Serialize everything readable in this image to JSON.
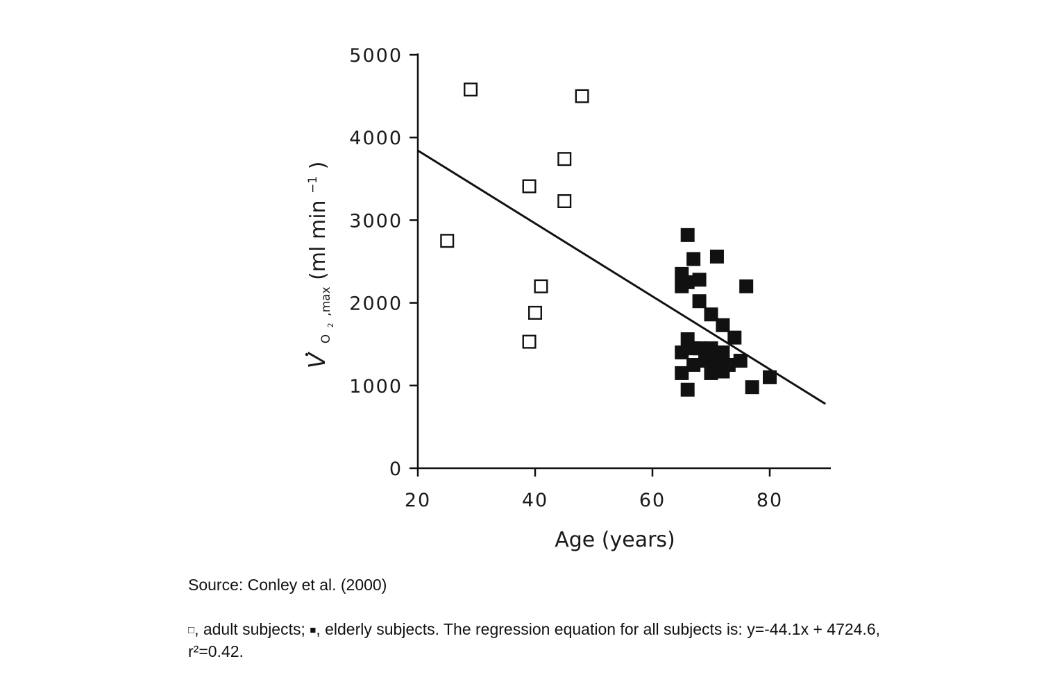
{
  "chart_data": {
    "type": "scatter",
    "title": "",
    "xlabel": "Age (years)",
    "ylabel": {
      "symbol": "V",
      "subscript_o": "O",
      "subscript_2": "2",
      "subscript_max": ",max",
      "units_open": " (ml min",
      "units_exp": "−1",
      "units_close": ")"
    },
    "xlim": [
      20,
      90
    ],
    "ylim": [
      0,
      5000
    ],
    "x_ticks": [
      20,
      40,
      60,
      80
    ],
    "y_ticks": [
      0,
      1000,
      2000,
      3000,
      4000,
      5000
    ],
    "grid": false,
    "series": [
      {
        "name": "adult subjects",
        "marker": "open-square",
        "points": [
          {
            "x": 25,
            "y": 2750
          },
          {
            "x": 29,
            "y": 4580
          },
          {
            "x": 39,
            "y": 3410
          },
          {
            "x": 39,
            "y": 1530
          },
          {
            "x": 40,
            "y": 1880
          },
          {
            "x": 41,
            "y": 2200
          },
          {
            "x": 45,
            "y": 3740
          },
          {
            "x": 45,
            "y": 3230
          },
          {
            "x": 48,
            "y": 4500
          }
        ]
      },
      {
        "name": "elderly subjects",
        "marker": "filled-square",
        "points": [
          {
            "x": 65,
            "y": 2350
          },
          {
            "x": 65,
            "y": 2200
          },
          {
            "x": 65,
            "y": 1400
          },
          {
            "x": 65,
            "y": 1150
          },
          {
            "x": 66,
            "y": 2820
          },
          {
            "x": 66,
            "y": 2250
          },
          {
            "x": 66,
            "y": 1560
          },
          {
            "x": 66,
            "y": 950
          },
          {
            "x": 67,
            "y": 2530
          },
          {
            "x": 67,
            "y": 1450
          },
          {
            "x": 67,
            "y": 1250
          },
          {
            "x": 68,
            "y": 2280
          },
          {
            "x": 68,
            "y": 2020
          },
          {
            "x": 68,
            "y": 1450
          },
          {
            "x": 69,
            "y": 1300
          },
          {
            "x": 70,
            "y": 1860
          },
          {
            "x": 70,
            "y": 1450
          },
          {
            "x": 70,
            "y": 1150
          },
          {
            "x": 71,
            "y": 2560
          },
          {
            "x": 71,
            "y": 1350
          },
          {
            "x": 71,
            "y": 1250
          },
          {
            "x": 72,
            "y": 1730
          },
          {
            "x": 72,
            "y": 1400
          },
          {
            "x": 72,
            "y": 1170
          },
          {
            "x": 73,
            "y": 1250
          },
          {
            "x": 74,
            "y": 1580
          },
          {
            "x": 75,
            "y": 1300
          },
          {
            "x": 76,
            "y": 2200
          },
          {
            "x": 77,
            "y": 980
          },
          {
            "x": 80,
            "y": 1100
          }
        ]
      }
    ],
    "regression": {
      "slope": -44.1,
      "intercept": 4724.6,
      "x_range": [
        20,
        89.5
      ]
    }
  },
  "caption": {
    "source": "Source: Conley et al. (2000)",
    "adult_symbol": "□",
    "adult_text": ", adult subjects; ",
    "elderly_symbol": "■",
    "elderly_text": ", elderly subjects. The regression equation for all subjects is: y=-44.1x + 4724.6, r²=0.42."
  }
}
